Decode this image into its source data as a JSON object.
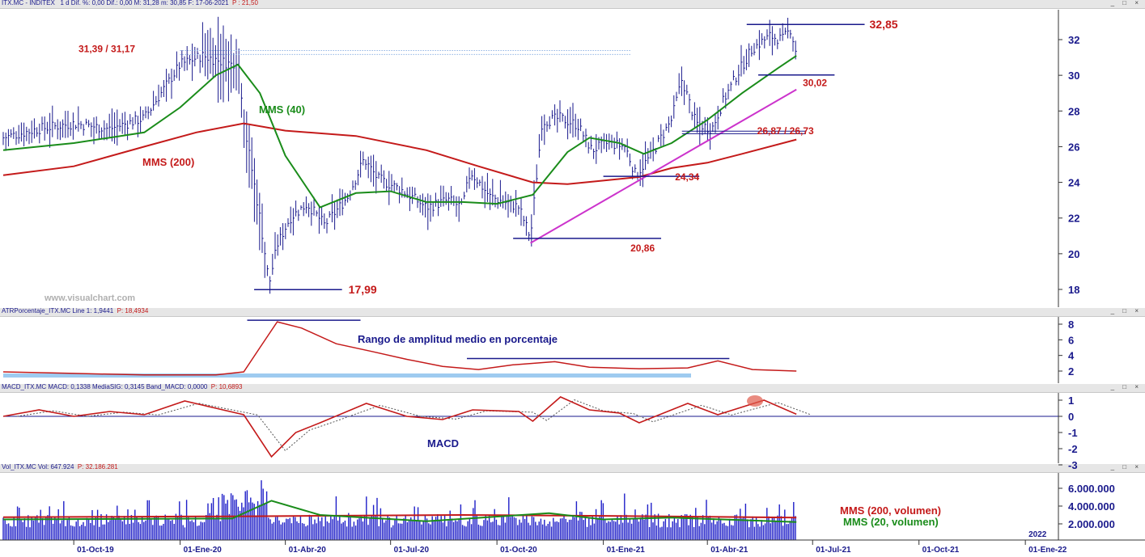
{
  "header_main": {
    "symbol": "ITX.MC - INDITEX",
    "info": "1 d  Dif. %: 0,00  Dif.: 0,00  M: 31,28  m: 30,85  F: 17-06-2021",
    "price": "P : 21,50"
  },
  "header_atr": {
    "name": "ATRPorcentaje_ITX.MC  Line 1: 1,9441",
    "price": "P: 18,4934"
  },
  "header_macd": {
    "name": "MACD_ITX.MC  MACD: 0,1338  MediaSIG: 0,3145  Band_MACD: 0,0000",
    "price": "P: 10,6893"
  },
  "header_vol": {
    "name": "Vol_ITX.MC  Vol: 647.924",
    "price": "P: 32.186.281"
  },
  "window_buttons": "_ □ ×",
  "watermark": "www.visualchart.com",
  "colors": {
    "price_bar": "#1a1a8c",
    "mms40": "#1a8c1a",
    "mms200": "#c41a1a",
    "trend": "#cc33cc",
    "level_line": "#1a1a8c",
    "label_red": "#c41a1a",
    "atr_line": "#c41a1a",
    "atr_base": "#9ecbf0",
    "vol_bar": "#1f1fc8"
  },
  "chart_data": [
    {
      "type": "line",
      "title": "",
      "ylim": [
        17,
        33.6
      ],
      "yticks": [
        "18",
        "20",
        "22",
        "24",
        "26",
        "28",
        "30",
        "32"
      ],
      "x_labels": [
        "01-Oct-19",
        "01-Ene-20",
        "01-Abr-20",
        "01-Jul-20",
        "01-Oct-20",
        "01-Ene-21",
        "01-Abr-21",
        "01-Jul-21",
        "01-Oct-21",
        "01-Ene-22"
      ],
      "x_year_marker": "2022",
      "price_path": [
        [
          "2019-08-01",
          26.5
        ],
        [
          "2019-09-01",
          27.0
        ],
        [
          "2019-10-01",
          27.3
        ],
        [
          "2019-11-01",
          27.0
        ],
        [
          "2019-12-01",
          27.6
        ],
        [
          "2020-01-01",
          30.6
        ],
        [
          "2020-01-20",
          31.1
        ],
        [
          "2020-02-15",
          30.6
        ],
        [
          "2020-02-20",
          31.0
        ],
        [
          "2020-02-26",
          27.0
        ],
        [
          "2020-03-10",
          22.0
        ],
        [
          "2020-03-18",
          18.3
        ],
        [
          "2020-03-25",
          20.5
        ],
        [
          "2020-04-05",
          22.0
        ],
        [
          "2020-04-20",
          22.8
        ],
        [
          "2020-05-05",
          21.6
        ],
        [
          "2020-05-25",
          23.2
        ],
        [
          "2020-06-08",
          25.3
        ],
        [
          "2020-06-20",
          24.2
        ],
        [
          "2020-07-10",
          23.6
        ],
        [
          "2020-08-01",
          22.6
        ],
        [
          "2020-08-20",
          23.0
        ],
        [
          "2020-09-01",
          22.6
        ],
        [
          "2020-09-08",
          24.6
        ],
        [
          "2020-09-25",
          23.2
        ],
        [
          "2020-10-20",
          22.6
        ],
        [
          "2020-10-30",
          20.9
        ],
        [
          "2020-11-09",
          27.4
        ],
        [
          "2020-11-25",
          27.6
        ],
        [
          "2020-12-10",
          27.2
        ],
        [
          "2020-12-22",
          25.8
        ],
        [
          "2021-01-05",
          26.2
        ],
        [
          "2021-01-20",
          26.0
        ],
        [
          "2021-01-29",
          24.4
        ],
        [
          "2021-02-10",
          25.4
        ],
        [
          "2021-03-01",
          27.5
        ],
        [
          "2021-03-10",
          29.8
        ],
        [
          "2021-03-22",
          27.3
        ],
        [
          "2021-04-05",
          27.0
        ],
        [
          "2021-04-15",
          28.6
        ],
        [
          "2021-04-28",
          30.2
        ],
        [
          "2021-05-10",
          31.5
        ],
        [
          "2021-05-25",
          32.2
        ],
        [
          "2021-06-05",
          32.0
        ],
        [
          "2021-06-12",
          32.6
        ],
        [
          "2021-06-17",
          31.2
        ]
      ],
      "series": [
        {
          "name": "MMS (40)",
          "color": "#1a8c1a",
          "points": [
            [
              "2019-08-01",
              25.8
            ],
            [
              "2019-10-01",
              26.2
            ],
            [
              "2019-12-01",
              26.8
            ],
            [
              "2020-01-01",
              28.2
            ],
            [
              "2020-02-01",
              30.0
            ],
            [
              "2020-02-20",
              30.6
            ],
            [
              "2020-03-10",
              29.0
            ],
            [
              "2020-04-01",
              25.5
            ],
            [
              "2020-05-01",
              22.6
            ],
            [
              "2020-06-01",
              23.4
            ],
            [
              "2020-07-01",
              23.5
            ],
            [
              "2020-08-01",
              22.9
            ],
            [
              "2020-09-01",
              22.9
            ],
            [
              "2020-10-01",
              22.8
            ],
            [
              "2020-11-01",
              23.3
            ],
            [
              "2020-12-01",
              25.7
            ],
            [
              "2020-12-20",
              26.5
            ],
            [
              "2021-01-15",
              26.2
            ],
            [
              "2021-02-05",
              25.6
            ],
            [
              "2021-03-01",
              26.2
            ],
            [
              "2021-04-01",
              27.5
            ],
            [
              "2021-05-01",
              29.0
            ],
            [
              "2021-06-01",
              30.4
            ],
            [
              "2021-06-17",
              31.1
            ]
          ]
        },
        {
          "name": "MMS (200)",
          "color": "#c41a1a",
          "points": [
            [
              "2019-08-01",
              24.4
            ],
            [
              "2019-10-01",
              24.9
            ],
            [
              "2019-12-01",
              26.0
            ],
            [
              "2020-01-15",
              26.8
            ],
            [
              "2020-02-25",
              27.3
            ],
            [
              "2020-04-01",
              26.9
            ],
            [
              "2020-06-01",
              26.6
            ],
            [
              "2020-08-01",
              25.8
            ],
            [
              "2020-09-15",
              24.9
            ],
            [
              "2020-11-01",
              24.0
            ],
            [
              "2020-12-01",
              23.9
            ],
            [
              "2021-01-01",
              24.1
            ],
            [
              "2021-02-01",
              24.3
            ],
            [
              "2021-03-01",
              24.8
            ],
            [
              "2021-04-01",
              25.1
            ],
            [
              "2021-05-01",
              25.6
            ],
            [
              "2021-06-17",
              26.4
            ]
          ]
        }
      ],
      "annotations": [
        {
          "label": "31,39 / 31,17",
          "x": [
            "2020-01-01",
            "2021-01-25"
          ],
          "y": [
            31.39,
            31.17
          ],
          "style": "dotted"
        },
        {
          "label": "32,85",
          "x": [
            "2021-05-05",
            "2021-08-15"
          ],
          "y": 32.85
        },
        {
          "label": "30,02",
          "x": [
            "2021-05-15",
            "2021-07-20"
          ],
          "y": 30.02
        },
        {
          "label": "26,87 / 26,73",
          "x": [
            "2021-03-10",
            "2021-06-25"
          ],
          "y": [
            26.87,
            26.73
          ]
        },
        {
          "label": "24,34",
          "x": [
            "2021-01-01",
            "2021-03-25"
          ],
          "y": 24.34
        },
        {
          "label": "20,86",
          "x": [
            "2020-10-15",
            "2021-02-20"
          ],
          "y": 20.86
        },
        {
          "label": "17,99",
          "x": [
            "2020-03-05",
            "2020-05-20"
          ],
          "y": 17.99
        }
      ],
      "trendline": {
        "from": [
          "2020-10-30",
          20.6
        ],
        "to": [
          "2021-06-17",
          29.2
        ]
      }
    },
    {
      "type": "line",
      "title": "Rango de amplitud medio en porcentaje",
      "ylim": [
        1,
        9
      ],
      "yticks": [
        "2",
        "4",
        "6",
        "8"
      ],
      "series": [
        {
          "name": "ATRPorcentaje",
          "color": "#c41a1a",
          "points": [
            [
              "2019-08-01",
              1.9
            ],
            [
              "2019-10-01",
              1.7
            ],
            [
              "2019-12-01",
              1.5
            ],
            [
              "2020-02-01",
              1.5
            ],
            [
              "2020-02-25",
              1.9
            ],
            [
              "2020-03-10",
              5.0
            ],
            [
              "2020-03-25",
              8.3
            ],
            [
              "2020-04-15",
              7.5
            ],
            [
              "2020-05-15",
              5.5
            ],
            [
              "2020-06-15",
              4.5
            ],
            [
              "2020-07-15",
              3.5
            ],
            [
              "2020-08-15",
              2.6
            ],
            [
              "2020-09-15",
              2.2
            ],
            [
              "2020-10-15",
              2.8
            ],
            [
              "2020-11-20",
              3.2
            ],
            [
              "2020-12-20",
              2.5
            ],
            [
              "2021-02-01",
              2.3
            ],
            [
              "2021-03-15",
              2.4
            ],
            [
              "2021-04-10",
              3.3
            ],
            [
              "2021-05-10",
              2.2
            ],
            [
              "2021-06-17",
              2.0
            ]
          ]
        }
      ],
      "reference_lines": [
        {
          "x": [
            "2020-02-28",
            "2020-06-05"
          ],
          "y": 8.5
        },
        {
          "x": [
            "2020-09-05",
            "2021-04-20"
          ],
          "y": 3.6
        }
      ]
    },
    {
      "type": "line",
      "title": "MACD",
      "ylim": [
        -3,
        1.4
      ],
      "yticks": [
        "1",
        "0",
        "-1",
        "-2",
        "-3"
      ],
      "series": [
        {
          "name": "MACD",
          "color": "#c41a1a",
          "points": [
            [
              "2019-08-01",
              0.0
            ],
            [
              "2019-09-01",
              0.4
            ],
            [
              "2019-10-01",
              0.0
            ],
            [
              "2019-11-01",
              0.3
            ],
            [
              "2019-12-01",
              0.1
            ],
            [
              "2020-01-05",
              0.95
            ],
            [
              "2020-02-01",
              0.5
            ],
            [
              "2020-02-25",
              0.1
            ],
            [
              "2020-03-20",
              -2.5
            ],
            [
              "2020-04-10",
              -1.0
            ],
            [
              "2020-05-01",
              -0.4
            ],
            [
              "2020-06-10",
              0.8
            ],
            [
              "2020-07-15",
              0.0
            ],
            [
              "2020-08-15",
              -0.2
            ],
            [
              "2020-09-10",
              0.4
            ],
            [
              "2020-10-20",
              0.3
            ],
            [
              "2020-11-01",
              -0.3
            ],
            [
              "2020-11-25",
              1.2
            ],
            [
              "2020-12-20",
              0.4
            ],
            [
              "2021-01-15",
              0.2
            ],
            [
              "2021-02-01",
              -0.4
            ],
            [
              "2021-03-15",
              0.8
            ],
            [
              "2021-04-10",
              0.1
            ],
            [
              "2021-05-20",
              1.0
            ],
            [
              "2021-06-17",
              0.13
            ]
          ]
        }
      ]
    },
    {
      "type": "bar",
      "title": "",
      "ylim": [
        0,
        7000000
      ],
      "yticks": [
        "2.000.000",
        "4.000.000",
        "6.000.000"
      ],
      "series": [
        {
          "name": "MMS (200, volumen)",
          "color": "#c41a1a",
          "points": [
            [
              "2019-08-01",
              2750000
            ],
            [
              "2020-03-01",
              2850000
            ],
            [
              "2020-09-01",
              3000000
            ],
            [
              "2021-01-01",
              2900000
            ],
            [
              "2021-06-17",
              2700000
            ]
          ]
        },
        {
          "name": "MMS (20, volumen)",
          "color": "#1a8c1a",
          "points": [
            [
              "2019-08-01",
              2500000
            ],
            [
              "2020-02-15",
              2600000
            ],
            [
              "2020-03-20",
              4600000
            ],
            [
              "2020-05-01",
              3000000
            ],
            [
              "2020-08-01",
              2300000
            ],
            [
              "2020-11-15",
              3200000
            ],
            [
              "2021-01-01",
              2500000
            ],
            [
              "2021-03-01",
              2700000
            ],
            [
              "2021-06-17",
              2200000
            ]
          ]
        }
      ],
      "legend": [
        "MMS (200, volumen)",
        "MMS (20, volumen)"
      ]
    }
  ],
  "labels": {
    "mms40": "MMS (40)",
    "mms200": "MMS (200)"
  }
}
